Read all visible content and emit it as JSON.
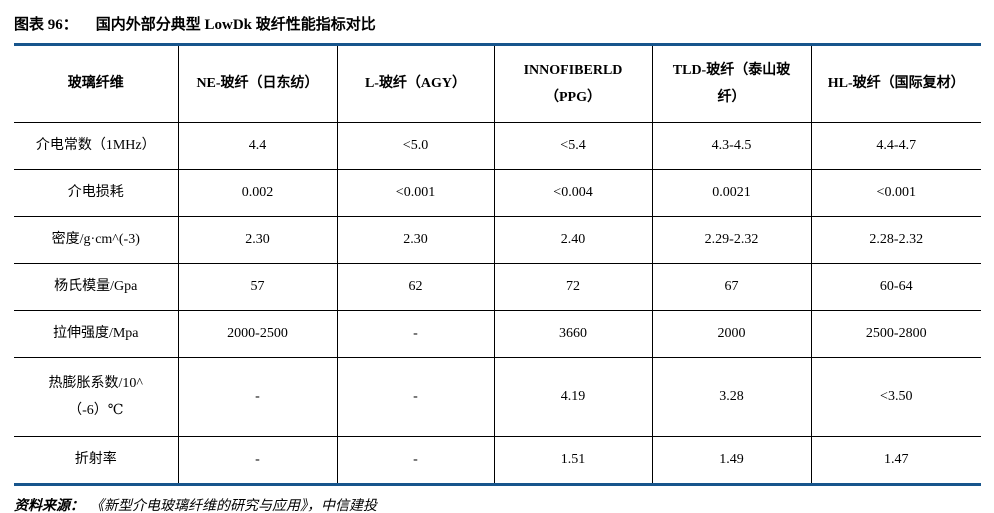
{
  "figure": {
    "title_label": "图表 96：",
    "title_text": "国内外部分典型 LowDk 玻纤性能指标对比"
  },
  "colors": {
    "accent_rule": "#17558C",
    "grid_line": "#000000",
    "text": "#000000"
  },
  "table": {
    "headers": [
      "玻璃纤维",
      "NE-玻纤（日东纺）",
      "L-玻纤（AGY）",
      "INNOFIBERLD（PPG）",
      "TLD-玻纤（泰山玻纤）",
      "HL-玻纤（国际复材）"
    ],
    "rows": [
      {
        "label": "介电常数（1MHz）",
        "values": [
          "4.4",
          "<5.0",
          "<5.4",
          "4.3-4.5",
          "4.4-4.7"
        ]
      },
      {
        "label": "介电损耗",
        "values": [
          "0.002",
          "<0.001",
          "<0.004",
          "0.0021",
          "<0.001"
        ]
      },
      {
        "label": "密度/g·cm^(-3)",
        "values": [
          "2.30",
          "2.30",
          "2.40",
          "2.29-2.32",
          "2.28-2.32"
        ]
      },
      {
        "label": "杨氏模量/Gpa",
        "values": [
          "57",
          "62",
          "72",
          "67",
          "60-64"
        ]
      },
      {
        "label": "拉伸强度/Mpa",
        "values": [
          "2000-2500",
          "-",
          "3660",
          "2000",
          "2500-2800"
        ]
      },
      {
        "label": "热膨胀系数/10^（-6）℃",
        "values": [
          "-",
          "-",
          "4.19",
          "3.28",
          "<3.50"
        ]
      },
      {
        "label": "折射率",
        "values": [
          "-",
          "-",
          "1.51",
          "1.49",
          "1.47"
        ]
      }
    ]
  },
  "footer": {
    "source_label": "资料来源：",
    "source_text": "《新型介电玻璃纤维的研究与应用》，中信建投"
  }
}
